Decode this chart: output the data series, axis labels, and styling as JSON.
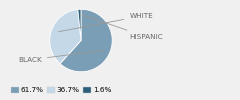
{
  "labels": [
    "BLACK",
    "WHITE",
    "HISPANIC"
  ],
  "values": [
    61.7,
    36.7,
    1.6
  ],
  "colors": [
    "#7a9eb5",
    "#c5d8e8",
    "#2e5f7a"
  ],
  "legend_labels": [
    "61.7%",
    "36.7%",
    "1.6%"
  ],
  "label_fontsize": 5.2,
  "legend_fontsize": 5.2,
  "startangle": 90,
  "background_color": "#f0f0f0"
}
